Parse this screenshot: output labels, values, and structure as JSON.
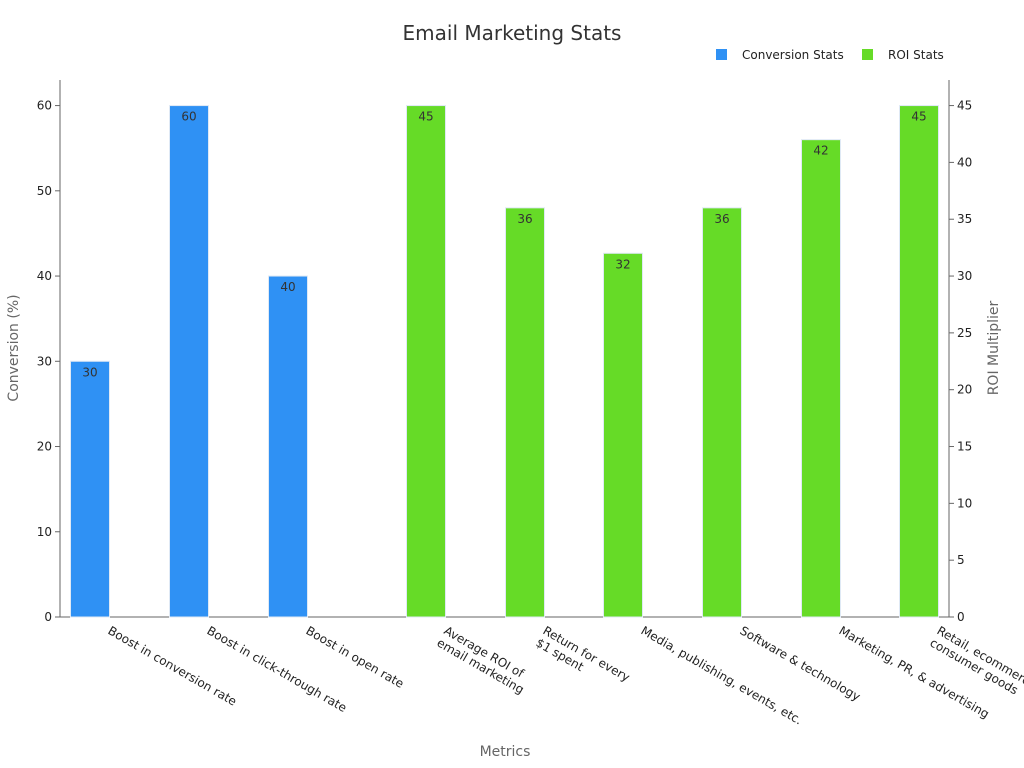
{
  "chart_data": {
    "type": "bar",
    "title": "Email Marketing Stats",
    "xlabel": "Metrics",
    "ylabel": "Conversion (%)",
    "y2label": "ROI Multiplier",
    "ylim": [
      0,
      63
    ],
    "y2lim": [
      0,
      47.25
    ],
    "yticks": [
      0,
      10,
      20,
      30,
      40,
      50,
      60
    ],
    "y2ticks": [
      0,
      5,
      10,
      15,
      20,
      25,
      30,
      35,
      40,
      45
    ],
    "legend_position": "top-right",
    "categories": [
      [
        "Boost in conversion rate"
      ],
      [
        "Boost in click-through rate"
      ],
      [
        "Boost in open rate"
      ],
      [
        "Average ROI of",
        "email marketing"
      ],
      [
        "Return for every",
        "$1 spent"
      ],
      [
        "Media, publishing, events, etc."
      ],
      [
        "Software & technology"
      ],
      [
        "Marketing, PR, & advertising"
      ],
      [
        "Retail, ecommerce, &",
        "consumer goods"
      ]
    ],
    "series": [
      {
        "name": "Conversion Stats",
        "axis": "left",
        "color": "#2f91f4",
        "values": [
          30,
          60,
          40,
          null,
          null,
          null,
          null,
          null,
          null
        ]
      },
      {
        "name": "ROI Stats",
        "axis": "right",
        "color": "#66db27",
        "values": [
          null,
          null,
          null,
          45,
          36,
          32,
          36,
          42,
          45
        ]
      }
    ]
  }
}
